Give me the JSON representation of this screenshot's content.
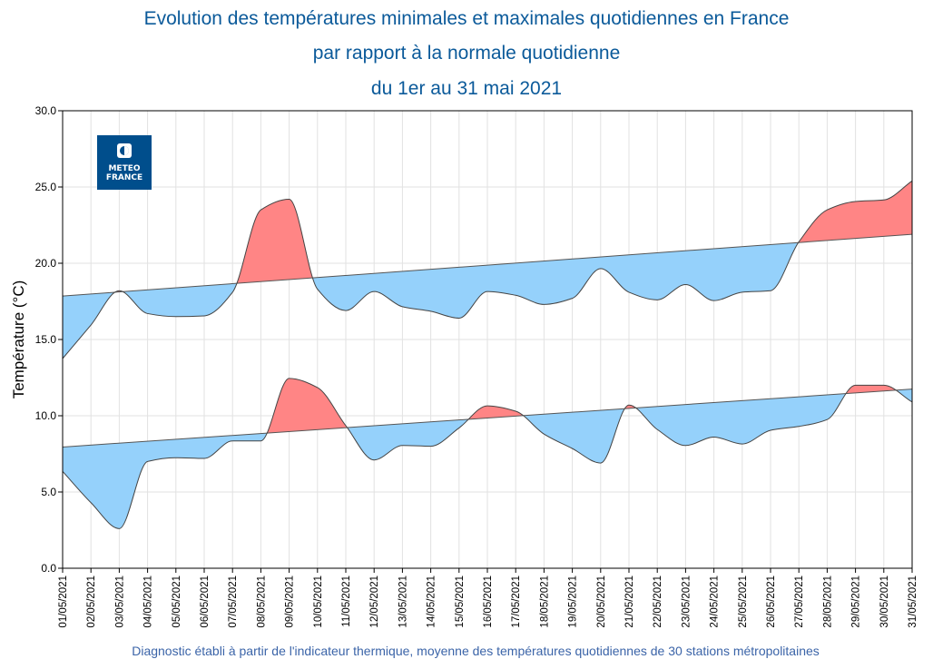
{
  "chart_data": {
    "type": "area",
    "title": [
      "Evolution des températures minimales et maximales quotidiennes en France",
      "par rapport à la normale quotidienne",
      "du 1er au 31 mai 2021"
    ],
    "ylabel": "Température (°C)",
    "xlabel": "",
    "ylim": [
      0,
      30
    ],
    "yticks": [
      "0.0",
      "5.0",
      "10.0",
      "15.0",
      "20.0",
      "25.0",
      "30.0"
    ],
    "grid": true,
    "categories": [
      "01/05/2021",
      "02/05/2021",
      "03/05/2021",
      "04/05/2021",
      "05/05/2021",
      "06/05/2021",
      "07/05/2021",
      "08/05/2021",
      "09/05/2021",
      "10/05/2021",
      "11/05/2021",
      "12/05/2021",
      "13/05/2021",
      "14/05/2021",
      "15/05/2021",
      "16/05/2021",
      "17/05/2021",
      "18/05/2021",
      "19/05/2021",
      "20/05/2021",
      "21/05/2021",
      "22/05/2021",
      "23/05/2021",
      "24/05/2021",
      "25/05/2021",
      "26/05/2021",
      "27/05/2021",
      "28/05/2021",
      "29/05/2021",
      "30/05/2021",
      "31/05/2021"
    ],
    "series": [
      {
        "key": "tmax",
        "values": [
          13.75,
          15.95,
          18.2,
          16.7,
          16.5,
          16.55,
          18.1,
          23.5,
          24.2,
          18.3,
          16.9,
          18.15,
          17.15,
          16.85,
          16.4,
          18.15,
          17.9,
          17.3,
          17.7,
          19.65,
          18.1,
          17.6,
          18.6,
          17.55,
          18.1,
          18.2,
          21.4,
          23.5,
          24.05,
          24.15,
          25.4
        ],
        "normal": [
          17.85,
          21.9
        ]
      },
      {
        "key": "tmin",
        "values": [
          6.35,
          4.3,
          2.6,
          7.0,
          7.25,
          7.2,
          8.35,
          8.35,
          12.45,
          11.85,
          9.35,
          7.1,
          8.05,
          8.0,
          9.2,
          10.65,
          10.3,
          8.8,
          7.85,
          6.9,
          10.7,
          9.1,
          8.05,
          8.6,
          8.15,
          9.05,
          9.3,
          9.75,
          12.0,
          12.0,
          10.9
        ],
        "normal": [
          7.95,
          11.75
        ]
      }
    ],
    "colors": {
      "above_normal": "#ff8585",
      "below_normal": "#95d1fb",
      "line": "#555555"
    }
  },
  "logo": {
    "line1": "METEO",
    "line2": "FRANCE",
    "color": "#004e8c"
  },
  "footer": "Diagnostic établi à partir de l'indicateur thermique, moyenne des températures quotidiennes de 30 stations métropolitaines"
}
